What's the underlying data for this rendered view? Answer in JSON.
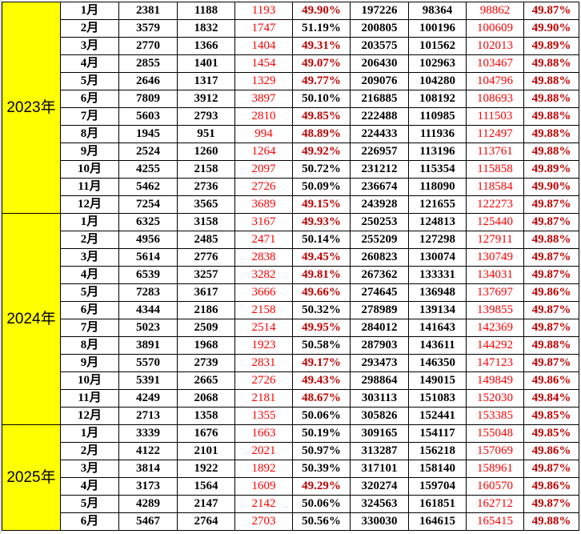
{
  "colors": {
    "year_bg": "#ffff00",
    "red_value": "#ff0000",
    "below_half_pct": "#c00000",
    "text": "#000000"
  },
  "groups": [
    {
      "year": "2023年",
      "rows": [
        [
          "1月",
          "2381",
          "1188",
          "1193",
          "49.90%",
          "197226",
          "98364",
          "98862",
          "49.87%"
        ],
        [
          "2月",
          "3579",
          "1832",
          "1747",
          "51.19%",
          "200805",
          "100196",
          "100609",
          "49.90%"
        ],
        [
          "3月",
          "2770",
          "1366",
          "1404",
          "49.31%",
          "203575",
          "101562",
          "102013",
          "49.89%"
        ],
        [
          "4月",
          "2855",
          "1401",
          "1454",
          "49.07%",
          "206430",
          "102963",
          "103467",
          "49.88%"
        ],
        [
          "5月",
          "2646",
          "1317",
          "1329",
          "49.77%",
          "209076",
          "104280",
          "104796",
          "49.88%"
        ],
        [
          "6月",
          "7809",
          "3912",
          "3897",
          "50.10%",
          "216885",
          "108192",
          "108693",
          "49.88%"
        ],
        [
          "7月",
          "5603",
          "2793",
          "2810",
          "49.85%",
          "222488",
          "110985",
          "111503",
          "49.88%"
        ],
        [
          "8月",
          "1945",
          "951",
          "994",
          "48.89%",
          "224433",
          "111936",
          "112497",
          "49.88%"
        ],
        [
          "9月",
          "2524",
          "1260",
          "1264",
          "49.92%",
          "226957",
          "113196",
          "113761",
          "49.88%"
        ],
        [
          "10月",
          "4255",
          "2158",
          "2097",
          "50.72%",
          "231212",
          "115354",
          "115858",
          "49.89%"
        ],
        [
          "11月",
          "5462",
          "2736",
          "2726",
          "50.09%",
          "236674",
          "118090",
          "118584",
          "49.90%"
        ],
        [
          "12月",
          "7254",
          "3565",
          "3689",
          "49.15%",
          "243928",
          "121655",
          "122273",
          "49.87%"
        ]
      ]
    },
    {
      "year": "2024年",
      "rows": [
        [
          "1月",
          "6325",
          "3158",
          "3167",
          "49.93%",
          "250253",
          "124813",
          "125440",
          "49.87%"
        ],
        [
          "2月",
          "4956",
          "2485",
          "2471",
          "50.14%",
          "255209",
          "127298",
          "127911",
          "49.88%"
        ],
        [
          "3月",
          "5614",
          "2776",
          "2838",
          "49.45%",
          "260823",
          "130074",
          "130749",
          "49.87%"
        ],
        [
          "4月",
          "6539",
          "3257",
          "3282",
          "49.81%",
          "267362",
          "133331",
          "134031",
          "49.87%"
        ],
        [
          "5月",
          "7283",
          "3617",
          "3666",
          "49.66%",
          "274645",
          "136948",
          "137697",
          "49.86%"
        ],
        [
          "6月",
          "4344",
          "2186",
          "2158",
          "50.32%",
          "278989",
          "139134",
          "139855",
          "49.87%"
        ],
        [
          "7月",
          "5023",
          "2509",
          "2514",
          "49.95%",
          "284012",
          "141643",
          "142369",
          "49.87%"
        ],
        [
          "8月",
          "3891",
          "1968",
          "1923",
          "50.58%",
          "287903",
          "143611",
          "144292",
          "49.88%"
        ],
        [
          "9月",
          "5570",
          "2739",
          "2831",
          "49.17%",
          "293473",
          "146350",
          "147123",
          "49.87%"
        ],
        [
          "10月",
          "5391",
          "2665",
          "2726",
          "49.43%",
          "298864",
          "149015",
          "149849",
          "49.86%"
        ],
        [
          "11月",
          "4249",
          "2068",
          "2181",
          "48.67%",
          "303113",
          "151083",
          "152030",
          "49.84%"
        ],
        [
          "12月",
          "2713",
          "1358",
          "1355",
          "50.06%",
          "305826",
          "152441",
          "153385",
          "49.85%"
        ]
      ]
    },
    {
      "year": "2025年",
      "rows": [
        [
          "1月",
          "3339",
          "1676",
          "1663",
          "50.19%",
          "309165",
          "154117",
          "155048",
          "49.85%"
        ],
        [
          "2月",
          "4122",
          "2101",
          "2021",
          "50.97%",
          "313287",
          "156218",
          "157069",
          "49.86%"
        ],
        [
          "3月",
          "3814",
          "1922",
          "1892",
          "50.39%",
          "317101",
          "158140",
          "158961",
          "49.87%"
        ],
        [
          "4月",
          "3173",
          "1564",
          "1609",
          "49.29%",
          "320274",
          "159704",
          "160570",
          "49.86%"
        ],
        [
          "5月",
          "4289",
          "2147",
          "2142",
          "50.06%",
          "324563",
          "161851",
          "162712",
          "49.87%"
        ],
        [
          "6月",
          "5467",
          "2764",
          "2703",
          "50.56%",
          "330030",
          "164615",
          "165415",
          "49.88%"
        ]
      ]
    }
  ]
}
